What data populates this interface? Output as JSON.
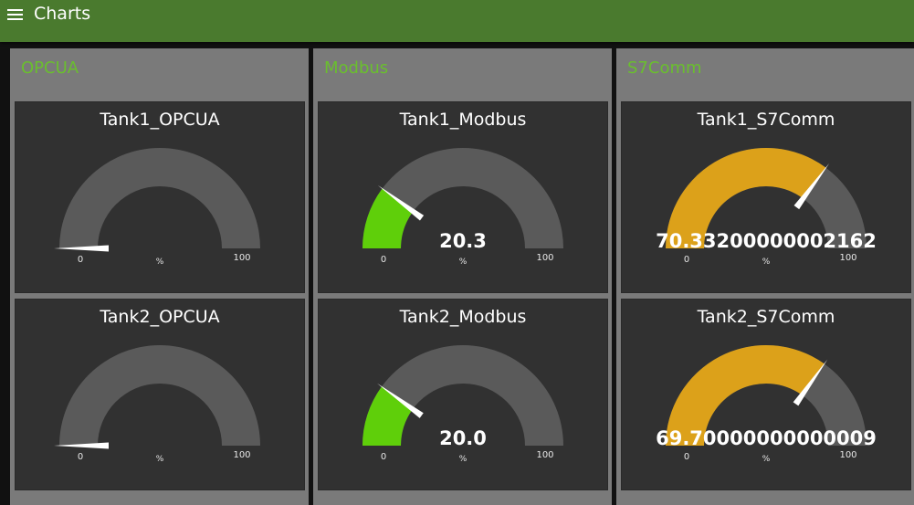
{
  "app": {
    "title": "Charts"
  },
  "colors": {
    "toolbar": "#4a7a2e",
    "group_title": "#6abf2e",
    "track": "#5a5a5a",
    "needle": "#ffffff"
  },
  "groups": [
    {
      "title": "OPCUA",
      "gauges": [
        {
          "title": "Tank1_OPCUA",
          "value": 0,
          "value_text": "",
          "min": "0",
          "max": "100",
          "unit": "%",
          "fill_color": "#5a5a5a"
        },
        {
          "title": "Tank2_OPCUA",
          "value": 0,
          "value_text": "",
          "min": "0",
          "max": "100",
          "unit": "%",
          "fill_color": "#5a5a5a"
        }
      ]
    },
    {
      "title": "Modbus",
      "gauges": [
        {
          "title": "Tank1_Modbus",
          "value": 20.3,
          "value_text": "20.3",
          "min": "0",
          "max": "100",
          "unit": "%",
          "fill_color": "#5fcf0a"
        },
        {
          "title": "Tank2_Modbus",
          "value": 20.0,
          "value_text": "20.0",
          "min": "0",
          "max": "100",
          "unit": "%",
          "fill_color": "#5fcf0a"
        }
      ]
    },
    {
      "title": "S7Comm",
      "gauges": [
        {
          "title": "Tank1_S7Comm",
          "value": 70.33200000002162,
          "value_text": "70.33200000002162",
          "min": "0",
          "max": "100",
          "unit": "%",
          "fill_color": "#dca11a"
        },
        {
          "title": "Tank2_S7Comm",
          "value": 69.70000000000009,
          "value_text": "69.70000000000009",
          "min": "0",
          "max": "100",
          "unit": "%",
          "fill_color": "#dca11a"
        }
      ]
    }
  ]
}
